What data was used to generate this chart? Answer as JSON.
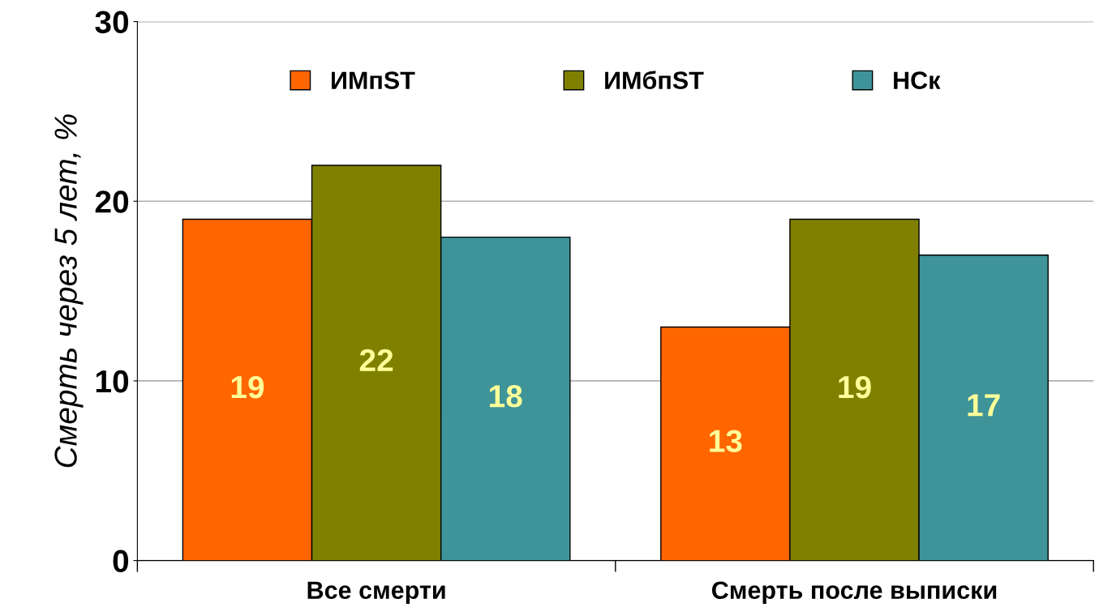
{
  "chart_data": {
    "type": "bar",
    "ylabel": "Смерть через 5 лет, %",
    "categories": [
      "Все смерти",
      "Смерть после выписки"
    ],
    "series": [
      {
        "name": "ИМпST",
        "color": "#ff6600",
        "values": [
          19,
          13
        ]
      },
      {
        "name": "ИМбпST",
        "color": "#808000",
        "values": [
          22,
          19
        ]
      },
      {
        "name": "НСк",
        "color": "#3f9499",
        "values": [
          18,
          17
        ]
      }
    ],
    "ylim": [
      0,
      30
    ],
    "yticks": [
      0,
      10,
      20,
      30
    ],
    "grid": "y",
    "legend": "top",
    "data_labels": true
  }
}
